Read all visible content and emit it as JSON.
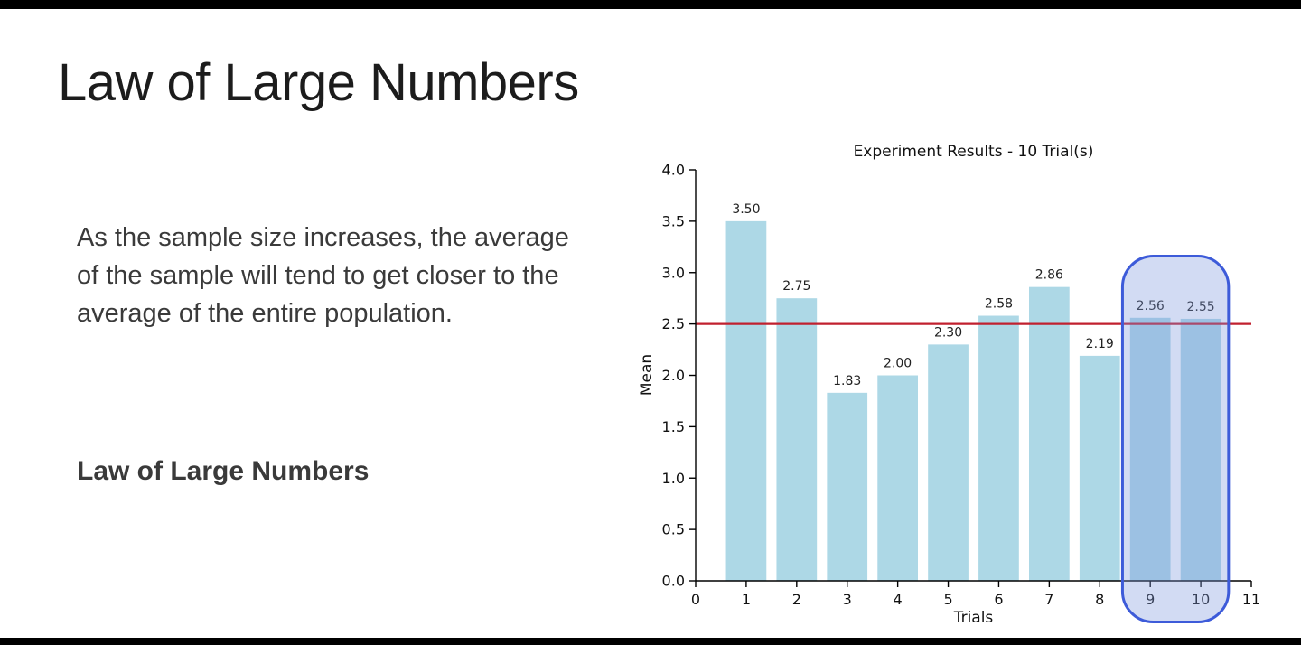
{
  "slide": {
    "title": "Law of Large Numbers",
    "body": "As the sample size increases, the average of the sample will tend to get closer to the average of the entire population.",
    "subheading": "Law of Large Numbers"
  },
  "chart_data": {
    "type": "bar",
    "title": "Experiment Results - 10 Trial(s)",
    "xlabel": "Trials",
    "ylabel": "Mean",
    "categories": [
      1,
      2,
      3,
      4,
      5,
      6,
      7,
      8,
      9,
      10
    ],
    "values": [
      3.5,
      2.75,
      1.83,
      2.0,
      2.3,
      2.58,
      2.86,
      2.19,
      2.56,
      2.55
    ],
    "bar_labels": [
      "3.50",
      "2.75",
      "1.83",
      "2.00",
      "2.30",
      "2.58",
      "2.86",
      "2.19",
      "2.56",
      "2.55"
    ],
    "xlim": [
      0,
      11
    ],
    "ylim": [
      0,
      4
    ],
    "x_ticks": [
      0,
      1,
      2,
      3,
      4,
      5,
      6,
      7,
      8,
      9,
      10,
      11
    ],
    "y_ticks": [
      "0.0",
      "0.5",
      "1.0",
      "1.5",
      "2.0",
      "2.5",
      "3.0",
      "3.5",
      "4.0"
    ],
    "bar_color": "#add8e6",
    "bar_width": 0.8,
    "grid": false,
    "legend": "none",
    "reference_line": {
      "y": 2.5,
      "color": "#c1202f"
    },
    "highlight": {
      "x_from": 8.45,
      "x_to": 10.55,
      "y_top": 3.16,
      "y_bottom": -0.4,
      "fill_color": "#7d98dc",
      "fill_opacity": 0.35,
      "stroke_color": "#3d5bd9",
      "note": "highlights trials 9 and 10"
    }
  }
}
